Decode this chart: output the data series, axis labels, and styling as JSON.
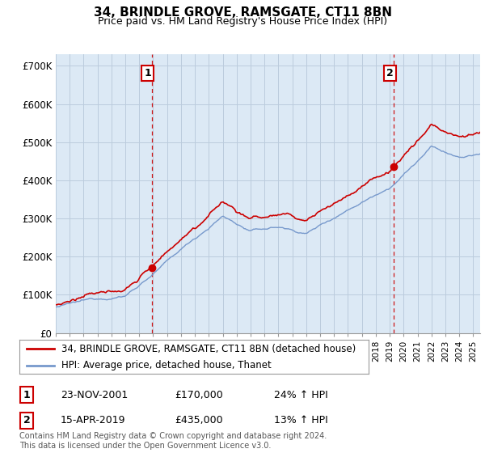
{
  "title": "34, BRINDLE GROVE, RAMSGATE, CT11 8BN",
  "subtitle": "Price paid vs. HM Land Registry's House Price Index (HPI)",
  "ylabel_ticks": [
    "£0",
    "£100K",
    "£200K",
    "£300K",
    "£400K",
    "£500K",
    "£600K",
    "£700K"
  ],
  "ytick_values": [
    0,
    100000,
    200000,
    300000,
    400000,
    500000,
    600000,
    700000
  ],
  "ylim": [
    0,
    730000
  ],
  "xlim_start": 1995.0,
  "xlim_end": 2025.5,
  "line1_color": "#cc0000",
  "line2_color": "#7799cc",
  "vline_color": "#cc0000",
  "chart_bg_color": "#dce9f5",
  "marker1_x": 2001.9,
  "marker1_y": 170000,
  "marker2_x": 2019.3,
  "marker2_y": 435000,
  "annotation1_label": "1",
  "annotation2_label": "2",
  "legend_line1": "34, BRINDLE GROVE, RAMSGATE, CT11 8BN (detached house)",
  "legend_line2": "HPI: Average price, detached house, Thanet",
  "table_rows": [
    {
      "num": "1",
      "date": "23-NOV-2001",
      "price": "£170,000",
      "change": "24% ↑ HPI"
    },
    {
      "num": "2",
      "date": "15-APR-2019",
      "price": "£435,000",
      "change": "13% ↑ HPI"
    }
  ],
  "footnote": "Contains HM Land Registry data © Crown copyright and database right 2024.\nThis data is licensed under the Open Government Licence v3.0.",
  "background_color": "#ffffff",
  "grid_color": "#bbccdd"
}
